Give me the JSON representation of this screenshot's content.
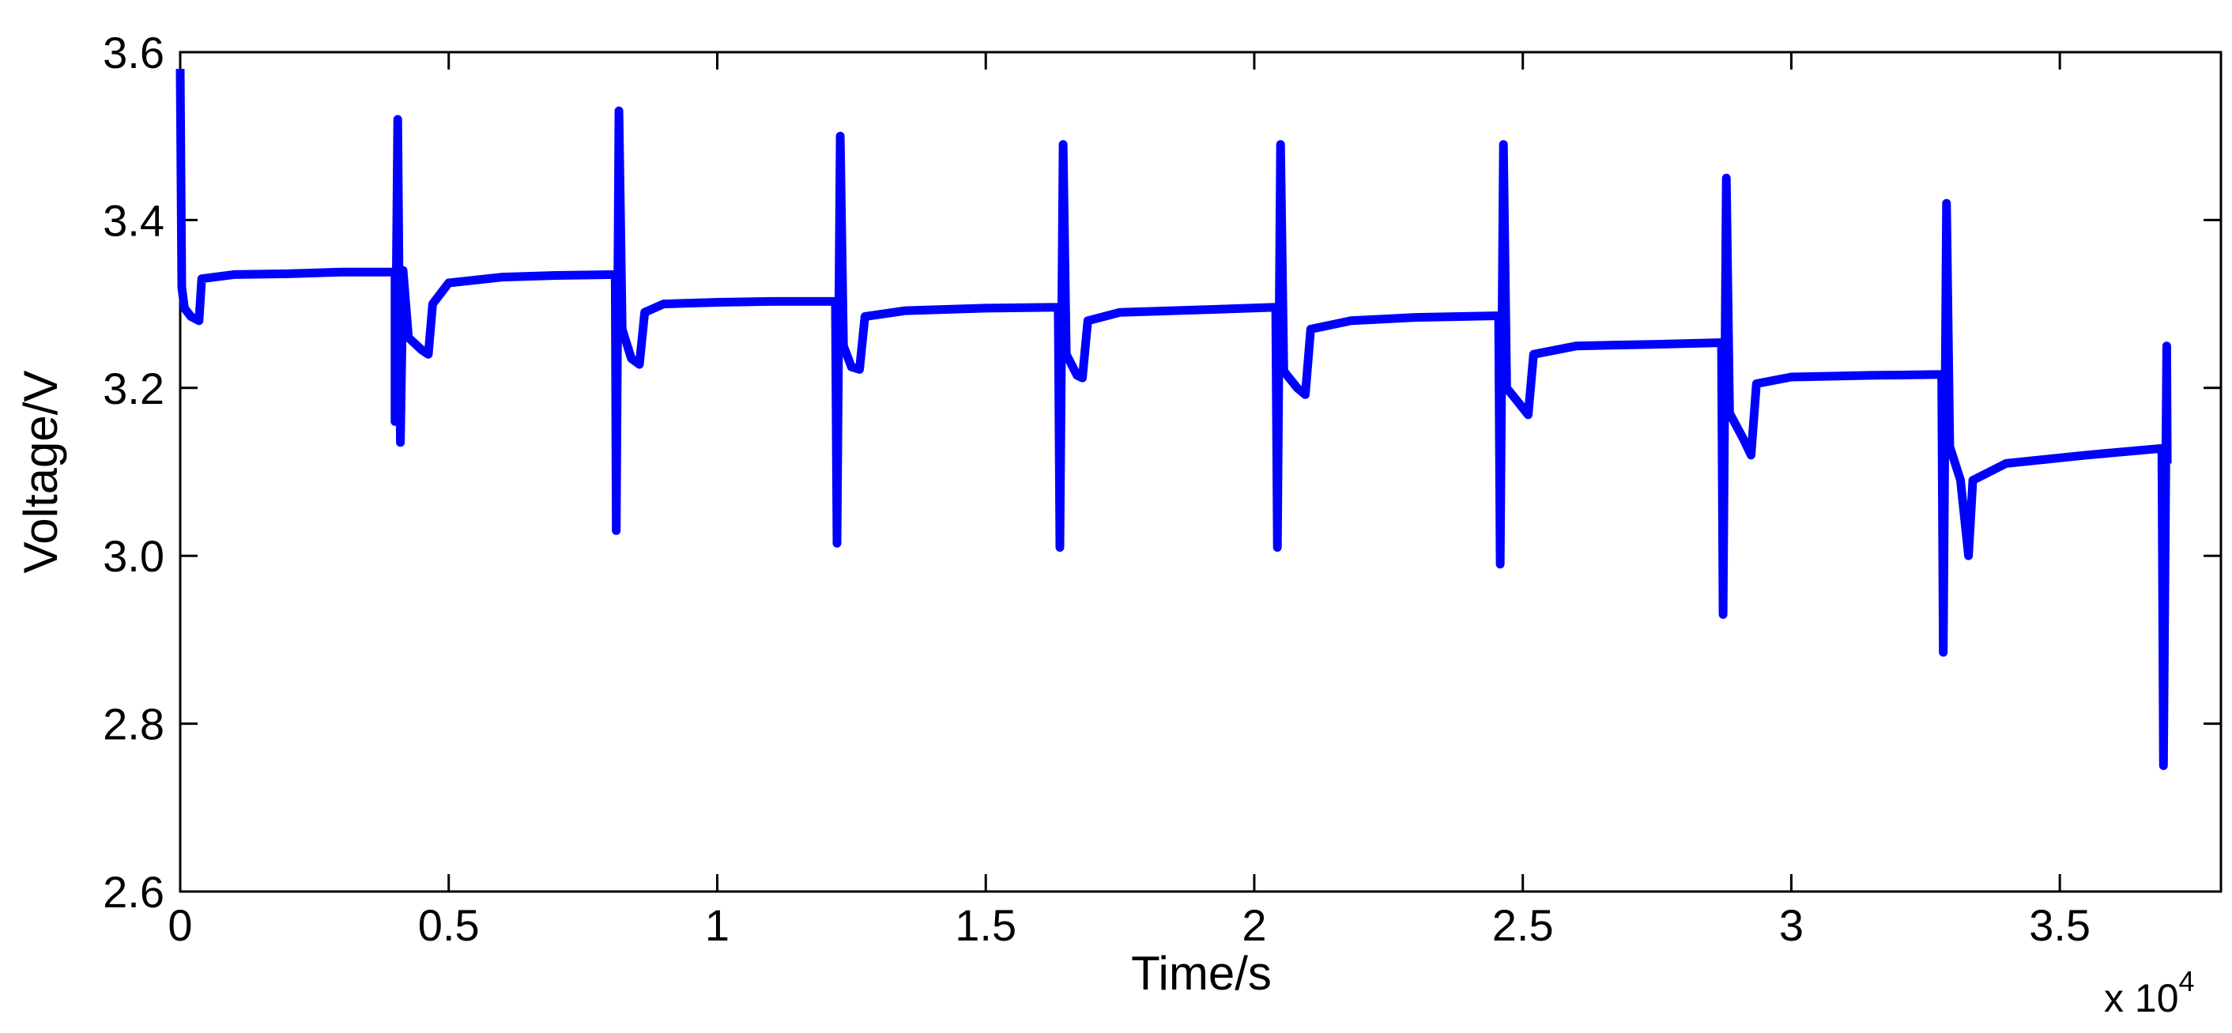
{
  "chart_data": {
    "type": "line",
    "title": "",
    "xlabel": "Time/s",
    "ylabel": "Voltage/V",
    "x_multiplier_label": "x 10",
    "x_multiplier_exponent": "4",
    "xlim": [
      0,
      38000
    ],
    "ylim": [
      2.6,
      3.6
    ],
    "x_ticks": [
      0,
      5000,
      10000,
      15000,
      20000,
      25000,
      30000,
      35000
    ],
    "x_tick_labels": [
      "0",
      "0.5",
      "1",
      "1.5",
      "2",
      "2.5",
      "3",
      "3.5"
    ],
    "y_ticks": [
      2.6,
      2.8,
      3.0,
      3.2,
      3.4,
      3.6
    ],
    "y_tick_labels": [
      "2.6",
      "2.8",
      "3.0",
      "3.2",
      "3.4",
      "3.6"
    ],
    "grid": false,
    "line_color": "#0000ff",
    "series": [
      {
        "points": [
          [
            0,
            3.58
          ],
          [
            30,
            3.32
          ],
          [
            80,
            3.295
          ],
          [
            200,
            3.285
          ],
          [
            350,
            3.28
          ],
          [
            400,
            3.33
          ],
          [
            1000,
            3.335
          ],
          [
            2000,
            3.336
          ],
          [
            3000,
            3.338
          ],
          [
            4000,
            3.338
          ],
          [
            4000,
            3.16
          ],
          [
            4050,
            3.52
          ],
          [
            4100,
            3.135
          ],
          [
            4150,
            3.34
          ],
          [
            4250,
            3.26
          ],
          [
            4500,
            3.245
          ],
          [
            4620,
            3.24
          ],
          [
            4700,
            3.3
          ],
          [
            5000,
            3.325
          ],
          [
            6000,
            3.332
          ],
          [
            7000,
            3.334
          ],
          [
            8100,
            3.335
          ],
          [
            8120,
            3.03
          ],
          [
            8170,
            3.53
          ],
          [
            8230,
            3.27
          ],
          [
            8400,
            3.235
          ],
          [
            8550,
            3.228
          ],
          [
            8650,
            3.29
          ],
          [
            9000,
            3.3
          ],
          [
            10000,
            3.302
          ],
          [
            11000,
            3.303
          ],
          [
            12200,
            3.303
          ],
          [
            12230,
            3.015
          ],
          [
            12290,
            3.5
          ],
          [
            12350,
            3.25
          ],
          [
            12500,
            3.225
          ],
          [
            12650,
            3.222
          ],
          [
            12750,
            3.285
          ],
          [
            13500,
            3.292
          ],
          [
            15000,
            3.295
          ],
          [
            16350,
            3.296
          ],
          [
            16380,
            3.01
          ],
          [
            16440,
            3.49
          ],
          [
            16500,
            3.24
          ],
          [
            16700,
            3.215
          ],
          [
            16800,
            3.212
          ],
          [
            16900,
            3.28
          ],
          [
            17500,
            3.29
          ],
          [
            19000,
            3.293
          ],
          [
            20400,
            3.296
          ],
          [
            20430,
            3.01
          ],
          [
            20490,
            3.49
          ],
          [
            20550,
            3.22
          ],
          [
            20800,
            3.2
          ],
          [
            20950,
            3.192
          ],
          [
            21050,
            3.27
          ],
          [
            21800,
            3.28
          ],
          [
            23000,
            3.284
          ],
          [
            24550,
            3.286
          ],
          [
            24580,
            2.99
          ],
          [
            24640,
            3.49
          ],
          [
            24700,
            3.2
          ],
          [
            24950,
            3.18
          ],
          [
            25100,
            3.168
          ],
          [
            25200,
            3.24
          ],
          [
            26000,
            3.25
          ],
          [
            27500,
            3.252
          ],
          [
            28700,
            3.254
          ],
          [
            28730,
            2.93
          ],
          [
            28790,
            3.45
          ],
          [
            28850,
            3.17
          ],
          [
            29100,
            3.14
          ],
          [
            29250,
            3.12
          ],
          [
            29350,
            3.205
          ],
          [
            30000,
            3.213
          ],
          [
            31500,
            3.215
          ],
          [
            32800,
            3.216
          ],
          [
            32830,
            2.885
          ],
          [
            32890,
            3.42
          ],
          [
            32950,
            3.13
          ],
          [
            33150,
            3.09
          ],
          [
            33300,
            3.0
          ],
          [
            33380,
            3.09
          ],
          [
            34000,
            3.11
          ],
          [
            35500,
            3.12
          ],
          [
            36900,
            3.128
          ],
          [
            36930,
            2.75
          ],
          [
            36990,
            3.25
          ],
          [
            37000,
            3.11
          ]
        ]
      }
    ]
  }
}
